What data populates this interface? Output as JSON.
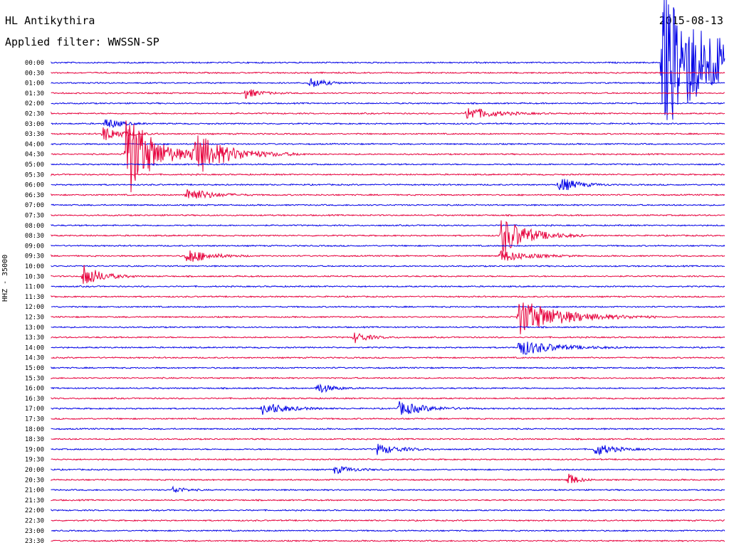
{
  "header": {
    "station": "HL Antikythira",
    "filter": "Applied filter: WWSSN-SP",
    "date": "2015-08-13",
    "channel": "HHZ - 35000"
  },
  "chart_data": {
    "type": "line",
    "title": "HL Antikythira",
    "subtitle": "Applied filter: WWSSN-SP",
    "ylabel": "HHZ - 35000",
    "colors": {
      "even_rows": "#0000e6",
      "odd_rows": "#e6003c"
    },
    "tick_labels": [
      "00:00",
      "00:30",
      "01:00",
      "01:30",
      "02:00",
      "02:30",
      "03:00",
      "03:30",
      "04:00",
      "04:30",
      "05:00",
      "05:30",
      "06:00",
      "06:30",
      "07:00",
      "07:30",
      "08:00",
      "08:30",
      "09:00",
      "09:30",
      "10:00",
      "10:30",
      "11:00",
      "11:30",
      "12:00",
      "12:30",
      "13:00",
      "13:30",
      "14:00",
      "14:30",
      "15:00",
      "15:30",
      "16:00",
      "16:30",
      "17:00",
      "17:30",
      "18:00",
      "18:30",
      "19:00",
      "19:30",
      "20:00",
      "20:30",
      "21:00",
      "21:30",
      "22:00",
      "22:30",
      "23:00",
      "23:30"
    ],
    "events": [
      {
        "row": 0,
        "minute": 27.2,
        "amp": 100,
        "dur": 3.5
      },
      {
        "row": 9,
        "minute": 3.3,
        "amp": 70,
        "dur": 1.5
      },
      {
        "row": 9,
        "minute": 6.3,
        "amp": 30,
        "dur": 2
      },
      {
        "row": 12,
        "minute": 22.6,
        "amp": 12,
        "dur": 1
      },
      {
        "row": 25,
        "minute": 20.8,
        "amp": 26,
        "dur": 2.5
      },
      {
        "row": 17,
        "minute": 20.0,
        "amp": 30,
        "dur": 1.5
      },
      {
        "row": 28,
        "minute": 20.8,
        "amp": 12,
        "dur": 2
      },
      {
        "row": 2,
        "minute": 11.5,
        "amp": 8,
        "dur": 0.8
      },
      {
        "row": 3,
        "minute": 8.6,
        "amp": 8,
        "dur": 0.8
      },
      {
        "row": 5,
        "minute": 18.5,
        "amp": 10,
        "dur": 1.5
      },
      {
        "row": 6,
        "minute": 2.4,
        "amp": 9,
        "dur": 0.8
      },
      {
        "row": 7,
        "minute": 2.3,
        "amp": 11,
        "dur": 1
      },
      {
        "row": 13,
        "minute": 6.0,
        "amp": 12,
        "dur": 1.2
      },
      {
        "row": 19,
        "minute": 6.0,
        "amp": 12,
        "dur": 1.2
      },
      {
        "row": 19,
        "minute": 20.0,
        "amp": 9,
        "dur": 1.5
      },
      {
        "row": 21,
        "minute": 1.4,
        "amp": 18,
        "dur": 1
      },
      {
        "row": 27,
        "minute": 13.5,
        "amp": 8,
        "dur": 0.8
      },
      {
        "row": 32,
        "minute": 11.8,
        "amp": 9,
        "dur": 0.8
      },
      {
        "row": 34,
        "minute": 9.4,
        "amp": 10,
        "dur": 1.3
      },
      {
        "row": 34,
        "minute": 15.5,
        "amp": 10,
        "dur": 1.5
      },
      {
        "row": 38,
        "minute": 14.5,
        "amp": 8,
        "dur": 1.2
      },
      {
        "row": 38,
        "minute": 24.2,
        "amp": 10,
        "dur": 1
      },
      {
        "row": 40,
        "minute": 12.6,
        "amp": 6,
        "dur": 1
      },
      {
        "row": 41,
        "minute": 23.0,
        "amp": 12,
        "dur": 0.5
      },
      {
        "row": 42,
        "minute": 5.4,
        "amp": 6,
        "dur": 0.6
      }
    ]
  }
}
